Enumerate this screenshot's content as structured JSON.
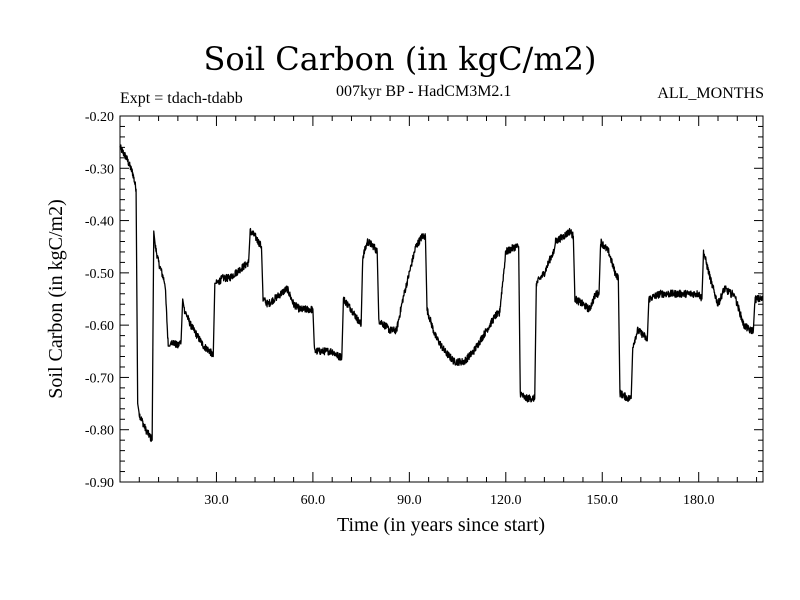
{
  "chart_data": {
    "type": "line",
    "title": "Soil Carbon (in kgC/m2)",
    "subtitle_left": "Expt = tdach-tdabb",
    "subtitle_center": "007kyr BP - HadCM3M2.1",
    "subtitle_right": "ALL_MONTHS",
    "xlabel": "Time (in years since start)",
    "ylabel": "Soil Carbon (in kgC/m2)",
    "xlim": [
      0,
      200
    ],
    "ylim": [
      -0.9,
      -0.2
    ],
    "xticks": [
      30,
      60,
      90,
      120,
      150,
      180
    ],
    "xtick_labels": [
      "30.0",
      "60.0",
      "90.0",
      "120.0",
      "150.0",
      "180.0"
    ],
    "yticks": [
      -0.2,
      -0.3,
      -0.4,
      -0.5,
      -0.6,
      -0.7,
      -0.8,
      -0.9
    ],
    "ytick_labels": [
      "-0.20",
      "-0.30",
      "-0.40",
      "-0.50",
      "-0.60",
      "-0.70",
      "-0.80",
      "-0.90"
    ],
    "series": [
      {
        "name": "Soil Carbon",
        "color": "#000000",
        "x": [
          0,
          2,
          4,
          5,
          5.5,
          6,
          8,
          10,
          10.5,
          11,
          12,
          14,
          15,
          15.5,
          16,
          18,
          19,
          19.5,
          20,
          22,
          24,
          26,
          28,
          29,
          29.5,
          30,
          32,
          34,
          36,
          38,
          40,
          40.5,
          42,
          44,
          44.5,
          46,
          48,
          50,
          52,
          54,
          56,
          60,
          60.5,
          64,
          66,
          68,
          69,
          69.5,
          72,
          74,
          75,
          75.5,
          77,
          79,
          80,
          80.5,
          84,
          86,
          88,
          90,
          92,
          94,
          95,
          95.5,
          98,
          101,
          104,
          107,
          110,
          113,
          117,
          118,
          120,
          123,
          124,
          124.5,
          126,
          128,
          129,
          129.5,
          132,
          134,
          135,
          135.5,
          138,
          140,
          141,
          141.5,
          144,
          146,
          148,
          149,
          149.5,
          152,
          154,
          155,
          155.5,
          158,
          159,
          159.5,
          161,
          163,
          164,
          164.5,
          168,
          172,
          176,
          178,
          180,
          181,
          181.5,
          184,
          186,
          188,
          190,
          191,
          191.5,
          194,
          196,
          197,
          197.5,
          200
        ],
        "y": [
          -0.26,
          -0.28,
          -0.31,
          -0.34,
          -0.75,
          -0.77,
          -0.8,
          -0.82,
          -0.42,
          -0.45,
          -0.48,
          -0.52,
          -0.64,
          -0.64,
          -0.63,
          -0.64,
          -0.63,
          -0.55,
          -0.57,
          -0.6,
          -0.62,
          -0.64,
          -0.65,
          -0.66,
          -0.52,
          -0.52,
          -0.51,
          -0.51,
          -0.5,
          -0.49,
          -0.48,
          -0.42,
          -0.43,
          -0.45,
          -0.55,
          -0.56,
          -0.55,
          -0.54,
          -0.53,
          -0.56,
          -0.57,
          -0.57,
          -0.65,
          -0.65,
          -0.65,
          -0.66,
          -0.66,
          -0.55,
          -0.57,
          -0.59,
          -0.6,
          -0.47,
          -0.44,
          -0.45,
          -0.46,
          -0.59,
          -0.61,
          -0.61,
          -0.55,
          -0.5,
          -0.45,
          -0.43,
          -0.43,
          -0.57,
          -0.62,
          -0.65,
          -0.67,
          -0.67,
          -0.65,
          -0.62,
          -0.58,
          -0.58,
          -0.46,
          -0.45,
          -0.45,
          -0.73,
          -0.74,
          -0.74,
          -0.74,
          -0.52,
          -0.5,
          -0.47,
          -0.46,
          -0.44,
          -0.43,
          -0.42,
          -0.43,
          -0.55,
          -0.56,
          -0.57,
          -0.54,
          -0.54,
          -0.44,
          -0.46,
          -0.5,
          -0.51,
          -0.73,
          -0.74,
          -0.74,
          -0.64,
          -0.61,
          -0.62,
          -0.63,
          -0.55,
          -0.54,
          -0.54,
          -0.54,
          -0.54,
          -0.54,
          -0.55,
          -0.46,
          -0.52,
          -0.56,
          -0.53,
          -0.54,
          -0.54,
          -0.55,
          -0.6,
          -0.61,
          -0.61,
          -0.55,
          -0.55
        ]
      }
    ]
  }
}
